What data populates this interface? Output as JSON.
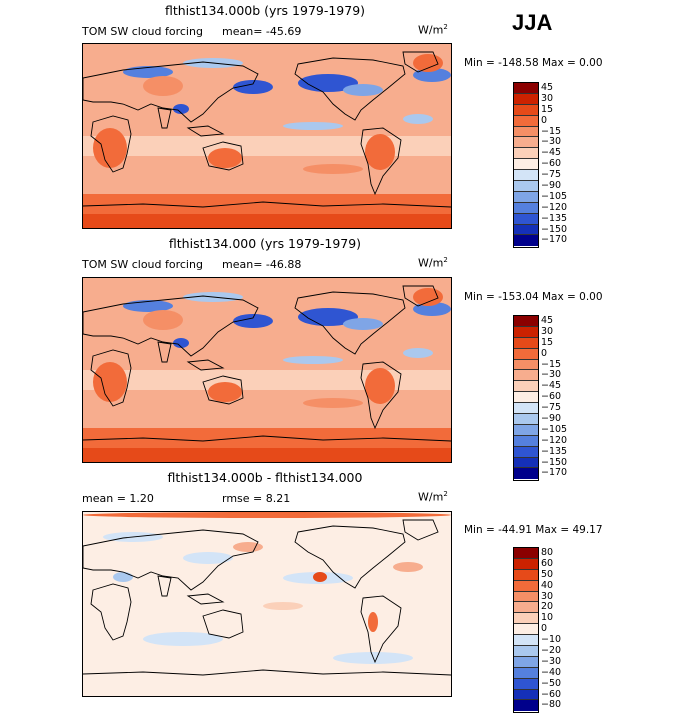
{
  "season": "JJA",
  "panels": [
    {
      "title": "flthist134.000b (yrs 1979-1979)",
      "left_label": "TOM SW cloud forcing",
      "mean_text": "mean=  -45.69",
      "units_main": "W/m",
      "units_sup": "2",
      "minmax": "Min = -148.58 Max =    0.00",
      "levels": [
        "45",
        "30",
        "15",
        "0",
        "−15",
        "−30",
        "−45",
        "−60",
        "−75",
        "−90",
        "−105",
        "−120",
        "−135",
        "−150",
        "−170"
      ],
      "colors": [
        "#8b0000",
        "#cc2200",
        "#e64a19",
        "#f26b3a",
        "#f58f66",
        "#f7ad8e",
        "#fbd0b9",
        "#fdeee4",
        "#d3e4f7",
        "#aac8ee",
        "#7fa5e6",
        "#5580de",
        "#2f55d2",
        "#1530b8",
        "#00008b"
      ]
    },
    {
      "title": "flthist134.000 (yrs 1979-1979)",
      "left_label": "TOM SW cloud forcing",
      "mean_text": "mean=  -46.88",
      "units_main": "W/m",
      "units_sup": "2",
      "minmax": "Min = -153.04 Max =    0.00",
      "levels": [
        "45",
        "30",
        "15",
        "0",
        "−15",
        "−30",
        "−45",
        "−60",
        "−75",
        "−90",
        "−105",
        "−120",
        "−135",
        "−150",
        "−170"
      ],
      "colors": [
        "#8b0000",
        "#cc2200",
        "#e64a19",
        "#f26b3a",
        "#f58f66",
        "#f7ad8e",
        "#fbd0b9",
        "#fdeee4",
        "#d3e4f7",
        "#aac8ee",
        "#7fa5e6",
        "#5580de",
        "#2f55d2",
        "#1530b8",
        "#00008b"
      ]
    },
    {
      "title": "flthist134.000b - flthist134.000",
      "left_label": "mean =    1.20",
      "mean_text": "rmse =    8.21",
      "units_main": "W/m",
      "units_sup": "2",
      "minmax": "Min = -44.91 Max =  49.17",
      "levels": [
        "80",
        "60",
        "50",
        "40",
        "30",
        "20",
        "10",
        "0",
        "−10",
        "−20",
        "−30",
        "−40",
        "−50",
        "−60",
        "−80"
      ],
      "colors": [
        "#8b0000",
        "#cc2200",
        "#e64a19",
        "#f26b3a",
        "#f58f66",
        "#f7ad8e",
        "#fbd0b9",
        "#fdeee4",
        "#d3e4f7",
        "#aac8ee",
        "#7fa5e6",
        "#5580de",
        "#2f55d2",
        "#1530b8",
        "#00008b"
      ]
    }
  ],
  "chart_data": [
    {
      "type": "heatmap",
      "title": "flthist134.000b (yrs 1979-1979)",
      "variable": "TOM SW cloud forcing",
      "units": "W/m2",
      "mean": -45.69,
      "min": -148.58,
      "max": 0.0,
      "contour_levels": [
        45,
        30,
        15,
        0,
        -15,
        -30,
        -45,
        -60,
        -75,
        -90,
        -105,
        -120,
        -135,
        -150,
        -170
      ]
    },
    {
      "type": "heatmap",
      "title": "flthist134.000 (yrs 1979-1979)",
      "variable": "TOM SW cloud forcing",
      "units": "W/m2",
      "mean": -46.88,
      "min": -153.04,
      "max": 0.0,
      "contour_levels": [
        45,
        30,
        15,
        0,
        -15,
        -30,
        -45,
        -60,
        -75,
        -90,
        -105,
        -120,
        -135,
        -150,
        -170
      ]
    },
    {
      "type": "heatmap",
      "title": "flthist134.000b - flthist134.000",
      "units": "W/m2",
      "mean": 1.2,
      "rmse": 8.21,
      "min": -44.91,
      "max": 49.17,
      "contour_levels": [
        80,
        60,
        50,
        40,
        30,
        20,
        10,
        0,
        -10,
        -20,
        -30,
        -40,
        -50,
        -60,
        -80
      ]
    }
  ]
}
